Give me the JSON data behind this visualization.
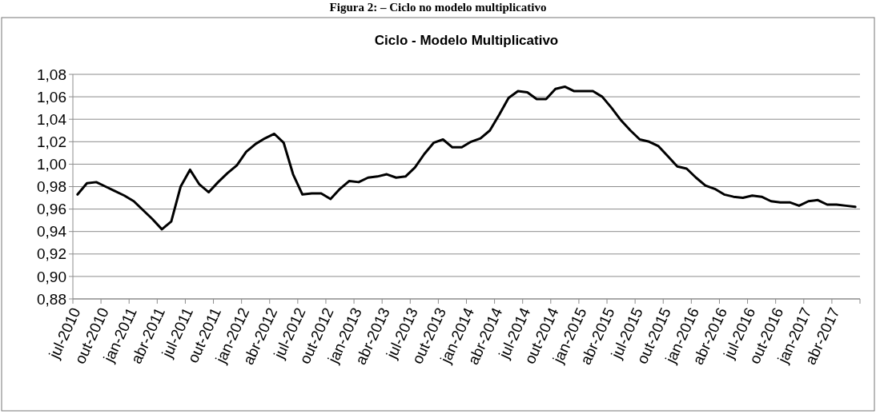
{
  "chart_data": {
    "type": "line",
    "title": "Ciclo - Modelo Multiplicativo",
    "annotations": [
      "Figura 2: – Ciclo no modelo multiplicativo"
    ],
    "categories": [
      "jul-2010",
      null,
      null,
      "out-2010",
      null,
      null,
      "jan-2011",
      null,
      null,
      "abr-2011",
      null,
      null,
      "jul-2011",
      null,
      null,
      "out-2011",
      null,
      null,
      "jan-2012",
      null,
      null,
      "abr-2012",
      null,
      null,
      "jul-2012",
      null,
      null,
      "out-2012",
      null,
      null,
      "jan-2013",
      null,
      null,
      "abr-2013",
      null,
      null,
      "jul-2013",
      null,
      null,
      "out-2013",
      null,
      null,
      "jan-2014",
      null,
      null,
      "abr-2014",
      null,
      null,
      "jul-2014",
      null,
      null,
      "out-2014",
      null,
      null,
      "jan-2015",
      null,
      null,
      "abr-2015",
      null,
      null,
      "jul-2015",
      null,
      null,
      "out-2015",
      null,
      null,
      "jan-2016",
      null,
      null,
      "abr-2016",
      null,
      null,
      "jul-2016",
      null,
      null,
      "out-2016",
      null,
      null,
      "jan-2017",
      null,
      null,
      "abr-2017",
      null,
      null
    ],
    "series": [
      {
        "color": "#000000",
        "values": [
          0.973,
          0.983,
          0.984,
          0.98,
          0.976,
          0.972,
          0.967,
          0.959,
          0.951,
          0.942,
          0.949,
          0.98,
          0.995,
          0.982,
          0.975,
          0.984,
          0.992,
          0.999,
          1.011,
          1.018,
          1.023,
          1.027,
          1.019,
          0.991,
          0.973,
          0.974,
          0.974,
          0.969,
          0.978,
          0.985,
          0.984,
          0.988,
          0.989,
          0.991,
          0.988,
          0.989,
          0.997,
          1.009,
          1.019,
          1.022,
          1.015,
          1.015,
          1.02,
          1.023,
          1.03,
          1.044,
          1.059,
          1.065,
          1.064,
          1.058,
          1.058,
          1.067,
          1.069,
          1.065,
          1.065,
          1.065,
          1.06,
          1.05,
          1.039,
          1.03,
          1.022,
          1.02,
          1.016,
          1.007,
          0.998,
          0.996,
          0.988,
          0.981,
          0.978,
          0.973,
          0.971,
          0.97,
          0.972,
          0.971,
          0.967,
          0.966,
          0.966,
          0.963,
          0.967,
          0.968,
          0.964,
          0.964,
          0.963,
          0.962
        ]
      }
    ],
    "ylim": [
      0.88,
      1.08
    ],
    "yticks": [
      {
        "value": 0.88,
        "label": "0,88"
      },
      {
        "value": 0.9,
        "label": "0,90"
      },
      {
        "value": 0.92,
        "label": "0,92"
      },
      {
        "value": 0.94,
        "label": "0,94"
      },
      {
        "value": 0.96,
        "label": "0,96"
      },
      {
        "value": 0.98,
        "label": "0,98"
      },
      {
        "value": 1.0,
        "label": "1,00"
      },
      {
        "value": 1.02,
        "label": "1,02"
      },
      {
        "value": 1.04,
        "label": "1,04"
      },
      {
        "value": 1.06,
        "label": "1,06"
      },
      {
        "value": 1.08,
        "label": "1,08"
      }
    ],
    "grid": "y",
    "marker": "none",
    "line_style": "solid"
  }
}
